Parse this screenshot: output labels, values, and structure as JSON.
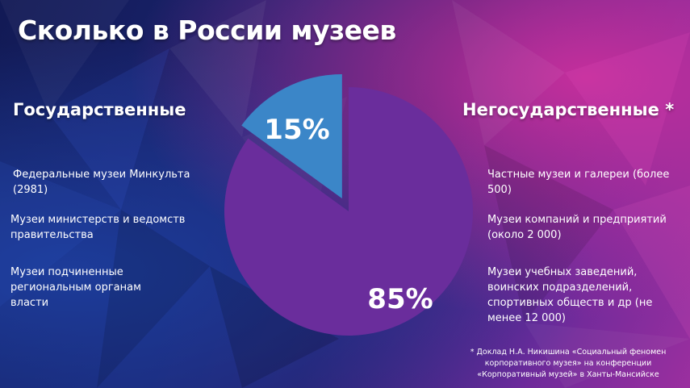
{
  "title": "Сколько в России музеев",
  "left_column": {
    "heading": "Государственные",
    "items": [
      "Федеральные музеи Минкульта (2981)",
      "Музеи министерств и ведомств правительства",
      "Музеи подчиненные региональным органам власти"
    ]
  },
  "right_column": {
    "heading": "Негосударственные *",
    "items": [
      "Частные музеи и галереи (более 500)",
      "Музеи  компаний и предприятий (около 2 000)",
      "Музеи  учебных заведений, воинских подразделений, спортивных обществ и др (не менее 12 000)"
    ]
  },
  "footnote": "* Доклад Н.А. Никишина  «Социальный феномен корпоративного музея» на конференции «Корпоративный музей» в Ханты-Мансийске",
  "chart_data": {
    "type": "pie",
    "slices": [
      {
        "label": "15%",
        "value": 15,
        "color": "#3b86c8"
      },
      {
        "label": "85%",
        "value": 85,
        "color": "#6a2d9c"
      }
    ]
  }
}
